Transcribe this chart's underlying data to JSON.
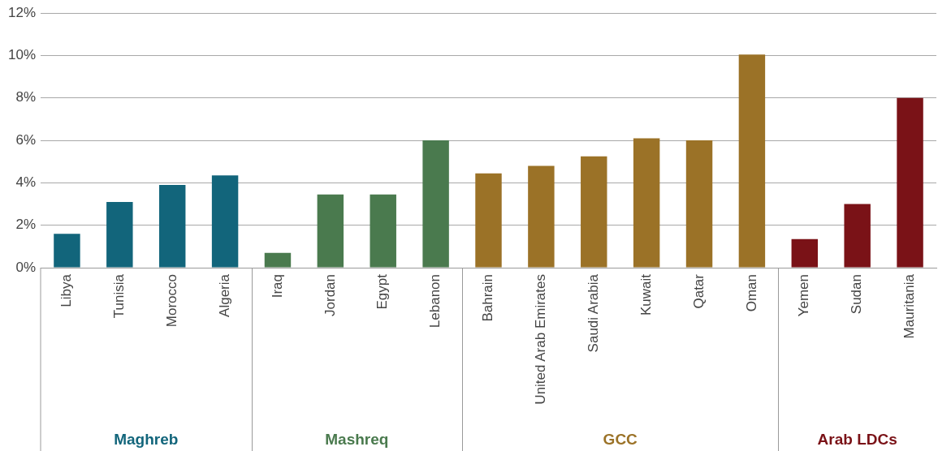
{
  "chart_data": {
    "type": "bar",
    "categories": [
      "Libya",
      "Tunisia",
      "Morocco",
      "Algeria",
      "Iraq",
      "Jordan",
      "Egypt",
      "Lebanon",
      "Bahrain",
      "United Arab Emirates",
      "Saudi Arabia",
      "Kuwait",
      "Qatar",
      "Oman",
      "Yemen",
      "Sudan",
      "Mauritania"
    ],
    "values": [
      1.6,
      3.1,
      3.9,
      4.35,
      0.7,
      3.45,
      3.45,
      6.0,
      4.45,
      4.8,
      5.25,
      6.1,
      6.0,
      10.05,
      1.35,
      3.0,
      8.0
    ],
    "colors": [
      "#12657b",
      "#12657b",
      "#12657b",
      "#12657b",
      "#4a7a4e",
      "#4a7a4e",
      "#4a7a4e",
      "#4a7a4e",
      "#9b7227",
      "#9b7227",
      "#9b7227",
      "#9b7227",
      "#9b7227",
      "#9b7227",
      "#7a1217",
      "#7a1217",
      "#7a1217"
    ],
    "annotations": [
      "Maghreb",
      "Mashreq",
      "GCC",
      "Arab LDCs"
    ],
    "ylim": [
      0,
      12
    ],
    "yticks": [
      {
        "value": 0,
        "label": "0%"
      },
      {
        "value": 2,
        "label": "2%"
      },
      {
        "value": 4,
        "label": "4%"
      },
      {
        "value": 6,
        "label": "6%"
      },
      {
        "value": 8,
        "label": "8%"
      },
      {
        "value": 10,
        "label": "10%"
      },
      {
        "value": 12,
        "label": "12%"
      }
    ],
    "grid": "y",
    "legend": false
  }
}
